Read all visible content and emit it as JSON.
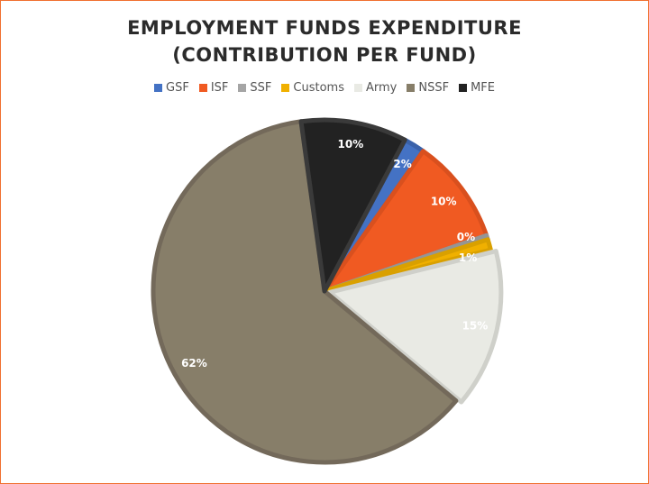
{
  "chart_data": {
    "type": "pie",
    "title_line1": "EMPLOYMENT FUNDS EXPENDITURE",
    "title_line2": "(CONTRIBUTION PER FUND)",
    "legend_position": "top",
    "start_angle_deg": 28,
    "slices": [
      {
        "name": "GSF",
        "value": 2,
        "label": "2%",
        "color": "#4472C4",
        "stroke": "#3A62AA"
      },
      {
        "name": "ISF",
        "value": 10,
        "label": "10%",
        "color": "#F05A22",
        "stroke": "#D9501E"
      },
      {
        "name": "SSF",
        "value": 0.4,
        "label": "0%",
        "color": "#A5A5A5",
        "stroke": "#959595"
      },
      {
        "name": "Customs",
        "value": 1,
        "label": "1%",
        "color": "#F0B000",
        "stroke": "#D9A000"
      },
      {
        "name": "Army",
        "value": 15,
        "label": "15%",
        "color": "#E9EAE4",
        "stroke": "#CFD0CA"
      },
      {
        "name": "NSSF",
        "value": 62,
        "label": "62%",
        "color": "#877E69",
        "stroke": "#73695A"
      },
      {
        "name": "MFE",
        "value": 10,
        "label": "10%",
        "color": "#222222",
        "stroke": "#3a3a3a"
      }
    ]
  }
}
